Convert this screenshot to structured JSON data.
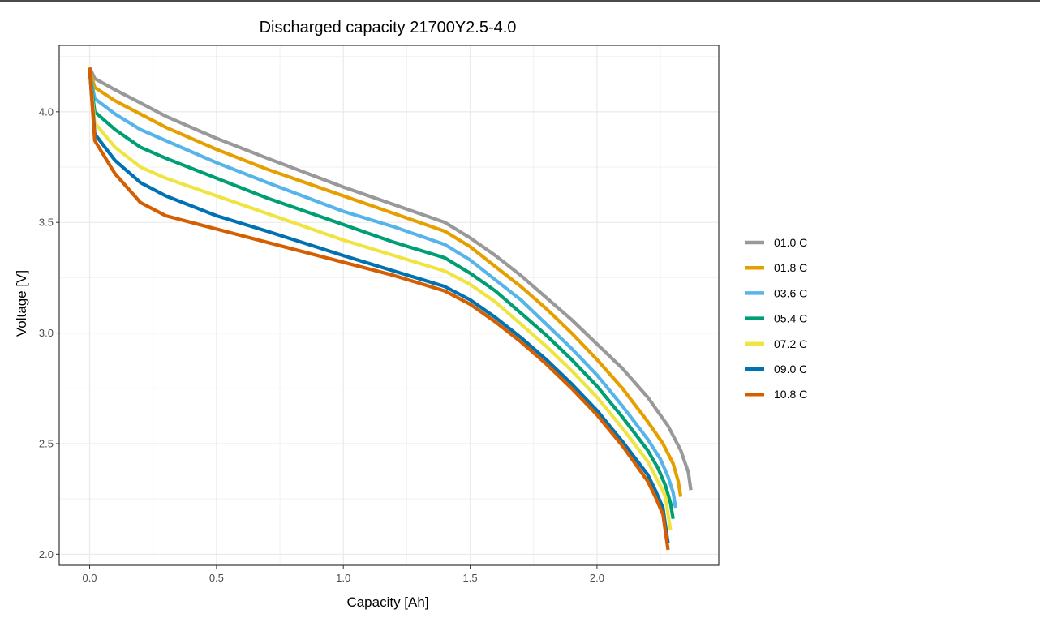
{
  "chart_data": {
    "type": "line",
    "title": "Discharged capacity 21700Y2.5-4.0",
    "xlabel": "Capacity [Ah]",
    "ylabel": "Voltage [V]",
    "xlim": [
      -0.12,
      2.48
    ],
    "ylim": [
      1.95,
      4.3
    ],
    "xticks": [
      0.0,
      0.5,
      1.0,
      1.5,
      2.0
    ],
    "xtick_labels": [
      "0.0",
      "0.5",
      "1.0",
      "1.5",
      "2.0"
    ],
    "yticks": [
      2.0,
      2.5,
      3.0,
      3.5,
      4.0
    ],
    "ytick_labels": [
      "2.0",
      "2.5",
      "3.0",
      "3.5",
      "4.0"
    ],
    "grid": true,
    "legend_position": "right",
    "series": [
      {
        "name": "01.0 C",
        "color": "#999999",
        "x": [
          0.0,
          0.02,
          0.1,
          0.2,
          0.3,
          0.5,
          0.7,
          1.0,
          1.2,
          1.4,
          1.5,
          1.6,
          1.7,
          1.8,
          1.9,
          2.0,
          2.1,
          2.2,
          2.28,
          2.33,
          2.36,
          2.37
        ],
        "y": [
          4.2,
          4.15,
          4.1,
          4.04,
          3.98,
          3.88,
          3.79,
          3.66,
          3.58,
          3.5,
          3.43,
          3.35,
          3.26,
          3.16,
          3.06,
          2.95,
          2.84,
          2.71,
          2.58,
          2.47,
          2.37,
          2.29
        ]
      },
      {
        "name": "01.8 C",
        "color": "#E69F00",
        "x": [
          0.0,
          0.02,
          0.1,
          0.2,
          0.3,
          0.5,
          0.7,
          1.0,
          1.2,
          1.4,
          1.5,
          1.6,
          1.7,
          1.8,
          1.9,
          2.0,
          2.1,
          2.2,
          2.26,
          2.3,
          2.32,
          2.33
        ],
        "y": [
          4.19,
          4.11,
          4.05,
          3.99,
          3.93,
          3.83,
          3.74,
          3.62,
          3.54,
          3.46,
          3.39,
          3.3,
          3.21,
          3.11,
          3.0,
          2.88,
          2.75,
          2.6,
          2.5,
          2.41,
          2.33,
          2.26
        ]
      },
      {
        "name": "03.6 C",
        "color": "#56B4E9",
        "x": [
          0.0,
          0.02,
          0.1,
          0.2,
          0.3,
          0.5,
          0.7,
          1.0,
          1.2,
          1.4,
          1.5,
          1.6,
          1.7,
          1.8,
          1.9,
          2.0,
          2.1,
          2.2,
          2.25,
          2.28,
          2.3,
          2.31
        ],
        "y": [
          4.18,
          4.06,
          3.99,
          3.92,
          3.87,
          3.77,
          3.68,
          3.55,
          3.48,
          3.4,
          3.33,
          3.24,
          3.15,
          3.04,
          2.93,
          2.81,
          2.67,
          2.52,
          2.43,
          2.35,
          2.28,
          2.21
        ]
      },
      {
        "name": "05.4 C",
        "color": "#009E73",
        "x": [
          0.0,
          0.02,
          0.1,
          0.2,
          0.3,
          0.5,
          0.7,
          1.0,
          1.2,
          1.4,
          1.5,
          1.6,
          1.7,
          1.8,
          1.9,
          2.0,
          2.1,
          2.2,
          2.24,
          2.27,
          2.29,
          2.3
        ],
        "y": [
          4.18,
          4.0,
          3.92,
          3.84,
          3.79,
          3.7,
          3.61,
          3.49,
          3.41,
          3.34,
          3.27,
          3.19,
          3.09,
          2.99,
          2.88,
          2.76,
          2.62,
          2.47,
          2.39,
          2.31,
          2.23,
          2.16
        ]
      },
      {
        "name": "07.2 C",
        "color": "#F0E442",
        "x": [
          0.0,
          0.02,
          0.1,
          0.2,
          0.3,
          0.5,
          0.7,
          1.0,
          1.2,
          1.4,
          1.5,
          1.6,
          1.7,
          1.8,
          1.9,
          2.0,
          2.1,
          2.2,
          2.24,
          2.27,
          2.28,
          2.29
        ],
        "y": [
          4.18,
          3.95,
          3.84,
          3.75,
          3.7,
          3.62,
          3.54,
          3.42,
          3.35,
          3.28,
          3.22,
          3.14,
          3.04,
          2.94,
          2.83,
          2.71,
          2.57,
          2.42,
          2.33,
          2.26,
          2.18,
          2.11
        ]
      },
      {
        "name": "09.0 C",
        "color": "#0072B2",
        "x": [
          0.0,
          0.02,
          0.1,
          0.2,
          0.3,
          0.5,
          0.7,
          1.0,
          1.2,
          1.4,
          1.5,
          1.6,
          1.7,
          1.8,
          1.9,
          2.0,
          2.1,
          2.2,
          2.23,
          2.26,
          2.27,
          2.28
        ],
        "y": [
          4.19,
          3.9,
          3.78,
          3.68,
          3.62,
          3.53,
          3.46,
          3.35,
          3.28,
          3.21,
          3.15,
          3.07,
          2.98,
          2.88,
          2.77,
          2.65,
          2.51,
          2.36,
          2.29,
          2.21,
          2.13,
          2.05
        ]
      },
      {
        "name": "10.8 C",
        "color": "#D55E00",
        "x": [
          0.0,
          0.02,
          0.1,
          0.2,
          0.3,
          0.5,
          0.7,
          1.0,
          1.2,
          1.4,
          1.5,
          1.6,
          1.7,
          1.8,
          1.9,
          2.0,
          2.1,
          2.2,
          2.23,
          2.26,
          2.27,
          2.28
        ],
        "y": [
          4.2,
          3.87,
          3.72,
          3.59,
          3.53,
          3.47,
          3.41,
          3.32,
          3.26,
          3.19,
          3.13,
          3.05,
          2.96,
          2.86,
          2.75,
          2.63,
          2.49,
          2.33,
          2.26,
          2.18,
          2.1,
          2.02
        ]
      }
    ]
  }
}
